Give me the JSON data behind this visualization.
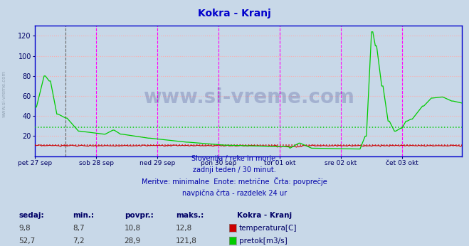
{
  "title": "Kokra - Kranj",
  "title_color": "#0000cc",
  "title_fontsize": 10,
  "bg_color": "#c8d8e8",
  "plot_bg_color": "#c8d8e8",
  "border_color": "#0000cc",
  "ylim": [
    0,
    130
  ],
  "yticks": [
    20,
    40,
    60,
    80,
    100,
    120
  ],
  "grid_color": "#ffaaaa",
  "grid_linestyle": ":",
  "grid_linewidth": 0.8,
  "temp_avg": 10.8,
  "flow_avg": 28.9,
  "temp_color": "#cc0000",
  "flow_color": "#00cc00",
  "temp_avg_color": "#cc0000",
  "flow_avg_color": "#00cc00",
  "vline_color": "#ff00ff",
  "vline_midnight_color": "#666666",
  "xlabel_color": "#000066",
  "watermark": "www.si-vreme.com",
  "watermark_color": "#000066",
  "watermark_alpha": 0.18,
  "subtitle1": "Slovenija / reke in morje.",
  "subtitle2": "zadnji teden / 30 minut.",
  "subtitle3": "Meritve: minimalne  Enote: metrične  Črta: povprečje",
  "subtitle4": "navpična črta - razdelek 24 ur",
  "subtitle_color": "#0000aa",
  "legend_title": "Kokra - Kranj",
  "legend_labels": [
    "temperatura[C]",
    "pretok[m3/s]"
  ],
  "legend_colors": [
    "#cc0000",
    "#00cc00"
  ],
  "table_headers": [
    "sedaj:",
    "min.:",
    "povpr.:",
    "maks.:"
  ],
  "table_temp": [
    "9,8",
    "8,7",
    "10,8",
    "12,8"
  ],
  "table_flow": [
    "52,7",
    "7,2",
    "28,9",
    "121,8"
  ],
  "table_color": "#000066",
  "n_points": 336,
  "day_labels": [
    "pet 27 sep",
    "sob 28 sep",
    "ned 29 sep",
    "pon 30 sep",
    "tor 01 okt",
    "sre 02 okt",
    "čet 03 okt"
  ],
  "day_label_color": "#000066",
  "sidebar_text": "www.si-vreme.com",
  "sidebar_color": "#8899aa",
  "vline_positions": [
    48,
    96,
    144,
    192,
    240,
    288
  ],
  "midnight_vline": 24
}
